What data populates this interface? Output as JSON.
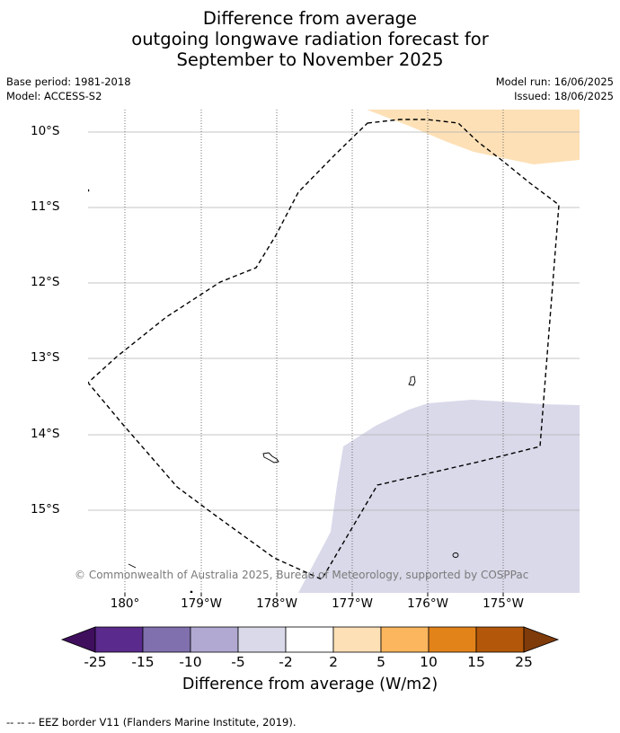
{
  "title": {
    "line1": "Difference from average",
    "line2": "outgoing longwave radiation forecast for",
    "line3": "September to November 2025"
  },
  "meta": {
    "base_period": "Base period: 1981-2018",
    "model": "Model: ACCESS-S2",
    "model_run": "Model run: 16/06/2025",
    "issued": "Issued: 18/06/2025"
  },
  "map": {
    "lat_labels": [
      "10°S",
      "11°S",
      "12°S",
      "13°S",
      "14°S",
      "15°S"
    ],
    "lon_labels": [
      "180°",
      "179°W",
      "178°W",
      "177°W",
      "176°W",
      "175°W"
    ],
    "copyright": "© Commonwealth of Australia 2025, Bureau of Meteorology, supported by COSPPac",
    "colors": {
      "light_orange": "#fde0b6",
      "light_purple": "#d9d9ea",
      "gridline": "#b0b0b0",
      "eez_border": "#000000"
    },
    "regions": [
      {
        "category": "2 to 5",
        "color": "#fde0b6",
        "location": "north-east"
      },
      {
        "category": "-5 to -2",
        "color": "#d9d9ea",
        "location": "south-east"
      }
    ]
  },
  "colorbar": {
    "ticks": [
      "-25",
      "-15",
      "-10",
      "-5",
      "-2",
      "2",
      "5",
      "10",
      "15",
      "25"
    ],
    "colors": [
      "#3f0f5e",
      "#5a2a8c",
      "#8070ad",
      "#b1a9d2",
      "#d9d9ea",
      "#ffffff",
      "#fde0b6",
      "#fbb65e",
      "#e2831a",
      "#b3580a",
      "#7f3b0a"
    ],
    "label": "Difference from average (W/m2)"
  },
  "footnote": "--  --  -- EEZ border V11 (Flanders Marine Institute, 2019)."
}
